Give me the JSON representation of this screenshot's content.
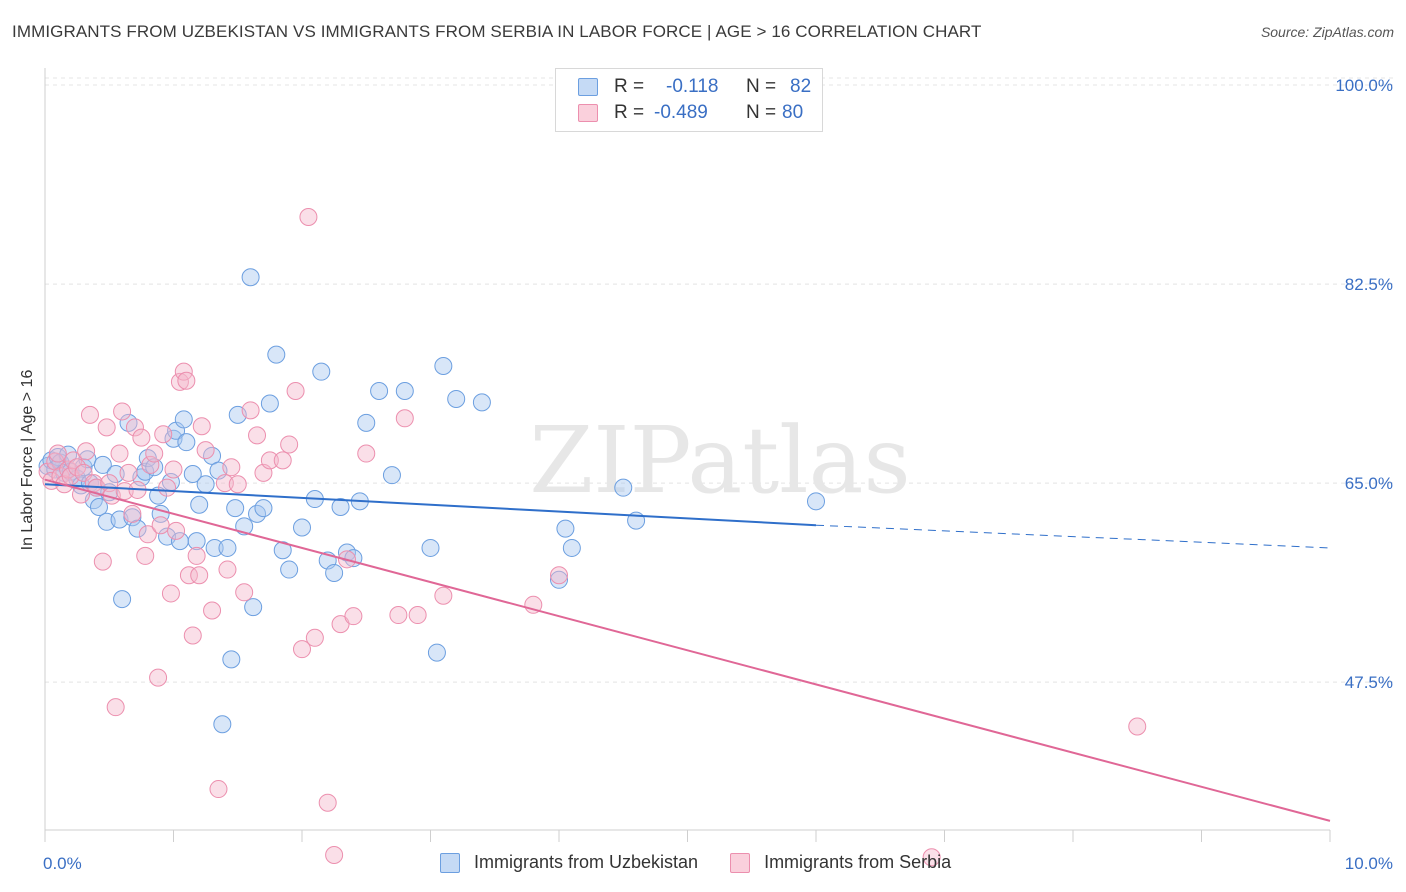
{
  "title": "IMMIGRANTS FROM UZBEKISTAN VS IMMIGRANTS FROM SERBIA IN LABOR FORCE | AGE > 16 CORRELATION CHART",
  "source": "Source: ZipAtlas.com",
  "watermark": "ZIPatlas",
  "legend": {
    "rows": [
      {
        "r_label": "R =",
        "r_value": "-0.118",
        "n_label": "N =",
        "n_value": "82",
        "color": "#a9c8f0"
      },
      {
        "r_label": "R =",
        "r_value": "-0.489",
        "n_label": "N =",
        "n_value": "80",
        "color": "#f5b8cb"
      }
    ]
  },
  "bottom_legend": [
    "Immigrants from Uzbekistan",
    "Immigrants from Serbia"
  ],
  "chart_data": {
    "type": "scatter",
    "title": "IMMIGRANTS FROM UZBEKISTAN VS IMMIGRANTS FROM SERBIA IN LABOR FORCE | AGE > 16 CORRELATION CHART",
    "xlabel": "",
    "ylabel": "In Labor Force | Age > 16",
    "xlim": [
      0,
      10
    ],
    "ylim": [
      34.5,
      101.5
    ],
    "x_tick_labels": [
      "0.0%",
      "10.0%"
    ],
    "y_ticks": [
      47.5,
      65.0,
      82.5,
      100.0
    ],
    "y_tick_labels": [
      "47.5%",
      "65.0%",
      "82.5%",
      "100.0%"
    ],
    "grid": true,
    "legend_position": "top-center",
    "colors": {
      "uzbekistan": "#4a86d6",
      "serbia": "#e0739a",
      "axis_text": "#3a6fc4"
    },
    "series": [
      {
        "name": "Immigrants from Uzbekistan",
        "color": "#a9c8f0",
        "stroke": "#6c9fe0",
        "trend": {
          "x": [
            0.0,
            6.0
          ],
          "y": [
            64.9,
            61.3
          ],
          "dashed_to": [
            10.0,
            59.3
          ],
          "color": "#2f6fca"
        },
        "points": [
          [
            0.02,
            66.5
          ],
          [
            0.05,
            67.0
          ],
          [
            0.08,
            66.2
          ],
          [
            0.1,
            67.3
          ],
          [
            0.12,
            66.8
          ],
          [
            0.15,
            65.9
          ],
          [
            0.18,
            67.5
          ],
          [
            0.2,
            66.0
          ],
          [
            0.25,
            65.4
          ],
          [
            0.28,
            64.8
          ],
          [
            0.3,
            66.4
          ],
          [
            0.33,
            67.1
          ],
          [
            0.35,
            65.0
          ],
          [
            0.38,
            63.5
          ],
          [
            0.4,
            64.6
          ],
          [
            0.42,
            62.9
          ],
          [
            0.45,
            66.6
          ],
          [
            0.48,
            61.6
          ],
          [
            0.5,
            64.2
          ],
          [
            0.55,
            65.8
          ],
          [
            0.58,
            61.8
          ],
          [
            0.6,
            54.8
          ],
          [
            0.65,
            70.3
          ],
          [
            0.68,
            62.0
          ],
          [
            0.72,
            61.0
          ],
          [
            0.75,
            65.5
          ],
          [
            0.78,
            66.0
          ],
          [
            0.8,
            67.2
          ],
          [
            0.85,
            66.4
          ],
          [
            0.88,
            63.9
          ],
          [
            0.9,
            62.3
          ],
          [
            0.95,
            60.3
          ],
          [
            0.98,
            65.1
          ],
          [
            1.0,
            68.9
          ],
          [
            1.02,
            69.6
          ],
          [
            1.05,
            59.9
          ],
          [
            1.08,
            70.6
          ],
          [
            1.1,
            68.6
          ],
          [
            1.15,
            65.8
          ],
          [
            1.18,
            59.9
          ],
          [
            1.2,
            63.1
          ],
          [
            1.25,
            64.9
          ],
          [
            1.3,
            67.4
          ],
          [
            1.32,
            59.3
          ],
          [
            1.35,
            66.1
          ],
          [
            1.38,
            43.8
          ],
          [
            1.42,
            59.3
          ],
          [
            1.45,
            49.5
          ],
          [
            1.48,
            62.8
          ],
          [
            1.5,
            71.0
          ],
          [
            1.55,
            61.2
          ],
          [
            1.6,
            83.1
          ],
          [
            1.62,
            54.1
          ],
          [
            1.65,
            62.3
          ],
          [
            1.7,
            62.8
          ],
          [
            1.75,
            72.0
          ],
          [
            1.8,
            76.3
          ],
          [
            1.85,
            59.1
          ],
          [
            1.9,
            57.4
          ],
          [
            2.0,
            61.1
          ],
          [
            2.1,
            63.6
          ],
          [
            2.15,
            74.8
          ],
          [
            2.2,
            58.2
          ],
          [
            2.25,
            57.1
          ],
          [
            2.3,
            62.9
          ],
          [
            2.35,
            58.9
          ],
          [
            2.4,
            58.4
          ],
          [
            2.45,
            63.4
          ],
          [
            2.5,
            70.3
          ],
          [
            2.6,
            73.1
          ],
          [
            2.7,
            65.7
          ],
          [
            2.8,
            73.1
          ],
          [
            3.0,
            59.3
          ],
          [
            3.05,
            50.1
          ],
          [
            3.1,
            75.3
          ],
          [
            3.2,
            72.4
          ],
          [
            3.4,
            72.1
          ],
          [
            4.0,
            56.5
          ],
          [
            4.05,
            61.0
          ],
          [
            4.1,
            59.3
          ],
          [
            4.5,
            64.6
          ],
          [
            4.6,
            61.7
          ],
          [
            6.0,
            63.4
          ]
        ]
      },
      {
        "name": "Immigrants from Serbia",
        "color": "#f5b8cb",
        "stroke": "#ec8fae",
        "trend": {
          "x": [
            0.0,
            10.0
          ],
          "y": [
            65.3,
            35.3
          ],
          "color": "#e06796"
        },
        "points": [
          [
            0.02,
            66.0
          ],
          [
            0.05,
            65.2
          ],
          [
            0.08,
            66.9
          ],
          [
            0.1,
            67.6
          ],
          [
            0.12,
            65.6
          ],
          [
            0.15,
            64.9
          ],
          [
            0.18,
            66.2
          ],
          [
            0.2,
            65.6
          ],
          [
            0.22,
            67.0
          ],
          [
            0.25,
            66.4
          ],
          [
            0.28,
            64.0
          ],
          [
            0.3,
            65.9
          ],
          [
            0.32,
            67.8
          ],
          [
            0.35,
            71.0
          ],
          [
            0.38,
            65.0
          ],
          [
            0.4,
            64.6
          ],
          [
            0.45,
            58.1
          ],
          [
            0.48,
            69.9
          ],
          [
            0.5,
            65.0
          ],
          [
            0.52,
            63.9
          ],
          [
            0.55,
            45.3
          ],
          [
            0.58,
            67.6
          ],
          [
            0.6,
            71.3
          ],
          [
            0.62,
            64.3
          ],
          [
            0.65,
            65.9
          ],
          [
            0.68,
            62.3
          ],
          [
            0.7,
            69.9
          ],
          [
            0.72,
            64.4
          ],
          [
            0.75,
            69.0
          ],
          [
            0.78,
            58.6
          ],
          [
            0.8,
            60.5
          ],
          [
            0.82,
            66.6
          ],
          [
            0.85,
            67.6
          ],
          [
            0.88,
            47.9
          ],
          [
            0.9,
            61.3
          ],
          [
            0.92,
            69.3
          ],
          [
            0.95,
            64.6
          ],
          [
            0.98,
            55.3
          ],
          [
            1.0,
            66.2
          ],
          [
            1.02,
            60.8
          ],
          [
            1.05,
            73.9
          ],
          [
            1.08,
            74.8
          ],
          [
            1.1,
            74.0
          ],
          [
            1.12,
            56.9
          ],
          [
            1.15,
            51.6
          ],
          [
            1.18,
            58.6
          ],
          [
            1.2,
            56.9
          ],
          [
            1.22,
            70.0
          ],
          [
            1.25,
            67.9
          ],
          [
            1.3,
            53.8
          ],
          [
            1.35,
            38.1
          ],
          [
            1.4,
            65.0
          ],
          [
            1.42,
            57.4
          ],
          [
            1.45,
            66.4
          ],
          [
            1.5,
            64.9
          ],
          [
            1.55,
            55.4
          ],
          [
            1.6,
            71.4
          ],
          [
            1.65,
            69.2
          ],
          [
            1.7,
            65.9
          ],
          [
            1.75,
            67.0
          ],
          [
            1.85,
            67.0
          ],
          [
            1.9,
            68.4
          ],
          [
            1.95,
            73.1
          ],
          [
            2.0,
            50.4
          ],
          [
            2.05,
            88.4
          ],
          [
            2.1,
            51.4
          ],
          [
            2.2,
            36.9
          ],
          [
            2.25,
            32.3
          ],
          [
            2.3,
            52.6
          ],
          [
            2.35,
            58.3
          ],
          [
            2.4,
            53.3
          ],
          [
            2.5,
            67.6
          ],
          [
            2.75,
            53.4
          ],
          [
            2.8,
            70.7
          ],
          [
            2.9,
            53.4
          ],
          [
            3.1,
            55.1
          ],
          [
            3.8,
            54.3
          ],
          [
            4.0,
            56.9
          ],
          [
            6.9,
            32.1
          ],
          [
            8.5,
            43.6
          ]
        ]
      }
    ]
  }
}
